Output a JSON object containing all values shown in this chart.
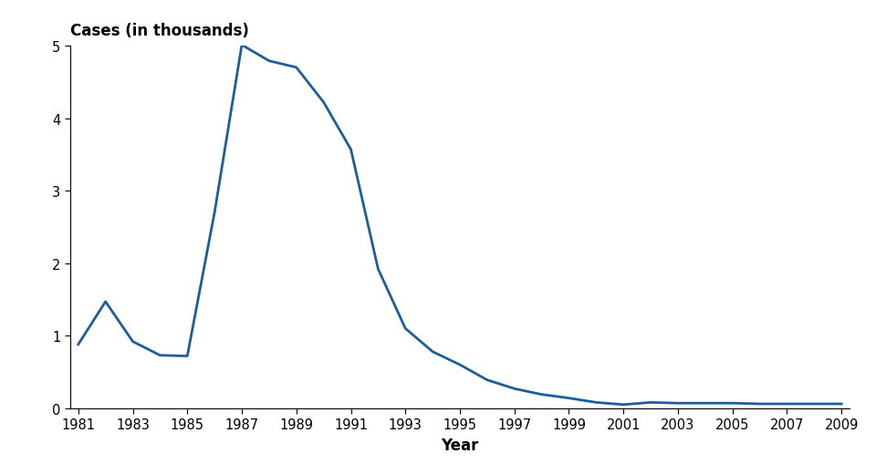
{
  "years": [
    1981,
    1982,
    1983,
    1984,
    1985,
    1986,
    1987,
    1988,
    1989,
    1990,
    1991,
    1992,
    1993,
    1994,
    1995,
    1996,
    1997,
    1998,
    1999,
    2000,
    2001,
    2002,
    2003,
    2004,
    2005,
    2006,
    2007,
    2008,
    2009
  ],
  "values": [
    0.88,
    1.47,
    0.92,
    0.73,
    0.72,
    2.7,
    5.01,
    4.79,
    4.7,
    4.22,
    3.57,
    1.92,
    1.1,
    0.78,
    0.6,
    0.39,
    0.27,
    0.19,
    0.14,
    0.08,
    0.05,
    0.08,
    0.07,
    0.07,
    0.07,
    0.06,
    0.06,
    0.06,
    0.06
  ],
  "line_color": "#1B5E99",
  "line_width": 2.0,
  "xlabel": "Year",
  "ylabel": "Cases (in thousands)",
  "xlim_min": 1981,
  "xlim_max": 2009,
  "ylim_min": 0,
  "ylim_max": 5,
  "yticks": [
    0,
    1,
    2,
    3,
    4,
    5
  ],
  "xticks": [
    1981,
    1983,
    1985,
    1987,
    1989,
    1991,
    1993,
    1995,
    1997,
    1999,
    2001,
    2003,
    2005,
    2007,
    2009
  ],
  "background_color": "#ffffff",
  "tick_label_fontsize": 10.5,
  "xlabel_fontsize": 12,
  "ylabel_fontsize": 12,
  "ylabel_fontweight": "bold",
  "xlabel_fontweight": "bold"
}
